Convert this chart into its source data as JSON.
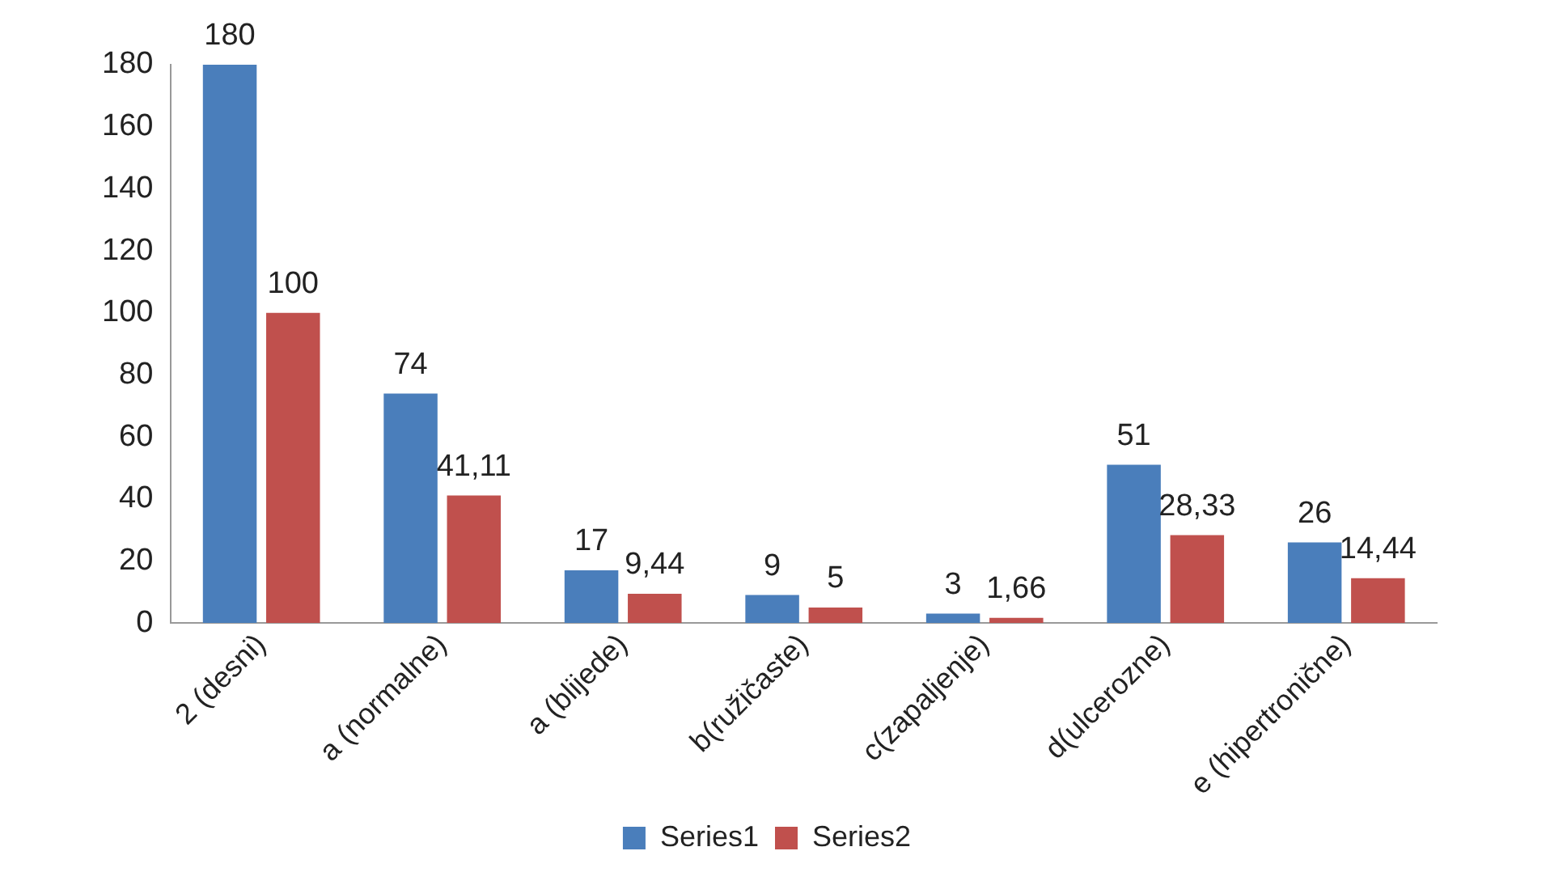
{
  "chart_data": {
    "type": "bar",
    "categories": [
      "2 (desni)",
      "a (normalne)",
      "a (blijede)",
      "b(ružičaste)",
      "c(zapaljenje)",
      "d(ulcerozne)",
      "e (hipertronične)"
    ],
    "series": [
      {
        "name": "Series1",
        "color": "#4a7ebb",
        "values": [
          180,
          74,
          17,
          9,
          3,
          51,
          26
        ],
        "value_labels": [
          "180",
          "74",
          "17",
          "9",
          "3",
          "51",
          "26"
        ]
      },
      {
        "name": "Series2",
        "color": "#c0504d",
        "values": [
          100,
          41.11,
          9.44,
          5,
          1.66,
          28.33,
          14.44
        ],
        "value_labels": [
          "100",
          "41,11",
          "9,44",
          "5",
          "1,66",
          "28,33",
          "14,44"
        ]
      }
    ],
    "ylim": [
      0,
      180
    ],
    "yticks": [
      0,
      20,
      40,
      60,
      80,
      100,
      120,
      140,
      160,
      180
    ],
    "grid": false,
    "legend": "bottom"
  }
}
